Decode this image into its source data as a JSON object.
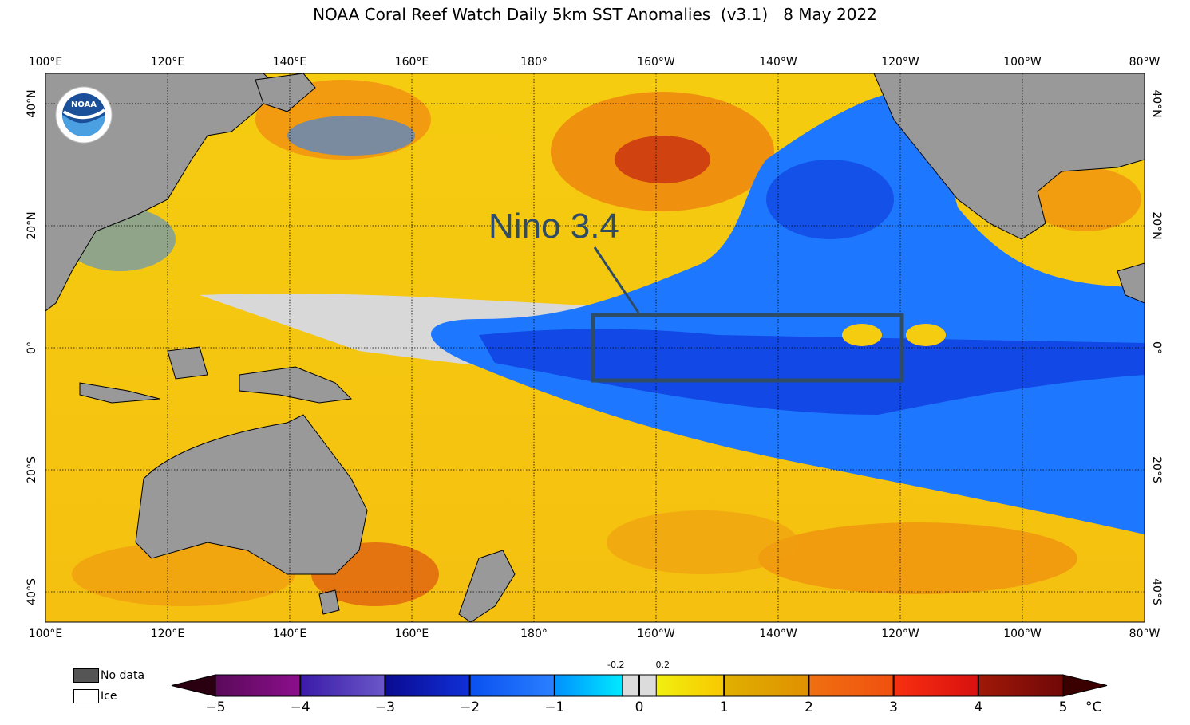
{
  "title": "NOAA Coral Reef Watch Daily 5km SST Anomalies  (v3.1)   8 May 2022",
  "annotation": "Nino 3.4",
  "logo_text": "NOAA",
  "lon_labels": [
    "100°E",
    "120°E",
    "140°E",
    "160°E",
    "180°",
    "160°W",
    "140°W",
    "120°W",
    "100°W",
    "80°W"
  ],
  "lat_labels": [
    "40°N",
    "20°N",
    "0°",
    "20°S",
    "40°S"
  ],
  "legend": {
    "no_data": "No data",
    "ice": "Ice",
    "no_data_color": "#555555",
    "ice_color": "#ffffff"
  },
  "colorbar": {
    "ticks": [
      "−5",
      "−4",
      "−3",
      "−2",
      "−1",
      "0",
      "1",
      "2",
      "3",
      "4",
      "5"
    ],
    "small_ticks": [
      "-0.2",
      "0.2"
    ],
    "unit": "°C",
    "range": [
      -5,
      5
    ],
    "colors": [
      "#2a0010",
      "#5a0a5a",
      "#8c0e8c",
      "#3a1aa8",
      "#6a58c8",
      "#0a0a90",
      "#1030d8",
      "#0a50f0",
      "#2a80ff",
      "#00b0ff",
      "#00eaff",
      "#dcdcdc",
      "#f0f010",
      "#f8c800",
      "#e0a000",
      "#f07010",
      "#f83010",
      "#d81010",
      "#a01808",
      "#700808",
      "#3a0000"
    ]
  },
  "map_colors": {
    "ocean_warm": "#f5cc10",
    "ocean_hot": "#f08a10",
    "ocean_cool": "#1e78ff",
    "ocean_cold": "#1040e0",
    "neutral": "#d8d8d8",
    "land": "#999999",
    "box": "#2f4c66"
  }
}
